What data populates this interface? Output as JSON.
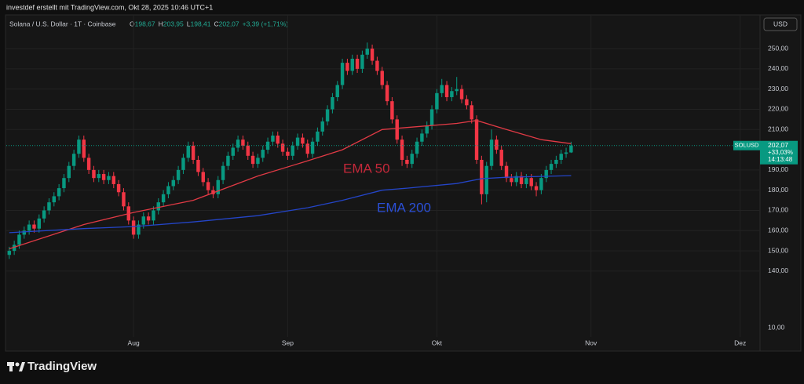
{
  "header": {
    "attribution": "investdef erstellt mit TradingView.com, Okt 28, 2025 10:46 UTC+1",
    "symbol_line": "Solana / U.S. Dollar · 1T · Coinbase",
    "ohlc": [
      {
        "key": "O",
        "value": "198,67"
      },
      {
        "key": "H",
        "value": "203,95"
      },
      {
        "key": "L",
        "value": "198,41"
      },
      {
        "key": "C",
        "value": "202,07"
      }
    ],
    "change": "+3,39 (+1,71%)",
    "currency": "USD"
  },
  "footer": {
    "brand": "TradingView"
  },
  "chart_data": {
    "type": "candlestick",
    "up_color": "#089981",
    "down_color": "#f23645",
    "grid": true,
    "x": [
      0,
      1,
      2,
      3,
      4,
      5,
      6,
      7,
      8,
      9,
      10,
      11,
      12,
      13,
      14,
      15,
      16,
      17,
      18,
      19,
      20,
      21,
      22,
      23,
      24,
      25,
      26,
      27,
      28,
      29,
      30,
      31,
      32,
      33,
      34,
      35,
      36,
      37,
      38,
      39,
      40,
      41,
      42,
      43,
      44,
      45,
      46,
      47,
      48,
      49,
      50,
      51,
      52,
      53,
      54,
      55,
      56,
      57,
      58,
      59,
      60,
      61,
      62,
      63,
      64,
      65,
      66,
      67,
      68,
      69,
      70,
      71,
      72,
      73,
      74,
      75,
      76,
      77,
      78,
      79,
      80,
      81,
      82,
      83,
      84,
      85,
      86,
      87,
      88,
      89,
      90,
      91,
      92,
      93,
      94,
      95,
      96,
      97,
      98,
      99,
      100,
      101,
      102,
      103,
      104,
      105,
      106,
      107,
      108,
      109,
      110,
      111,
      112,
      113
    ],
    "open": [
      148,
      150,
      153,
      158,
      160,
      163,
      161,
      166,
      170,
      174,
      177,
      181,
      186,
      192,
      198,
      205,
      196,
      190,
      186,
      188,
      185,
      187,
      183,
      179,
      172,
      165,
      158,
      163,
      167,
      165,
      170,
      174,
      178,
      182,
      185,
      190,
      196,
      202,
      195,
      189,
      184,
      180,
      178,
      185,
      192,
      197,
      201,
      205,
      202,
      197,
      193,
      196,
      200,
      204,
      207,
      203,
      199,
      197,
      202,
      206,
      203,
      198,
      204,
      209,
      214,
      220,
      226,
      232,
      243,
      239,
      245,
      240,
      247,
      250,
      244,
      239,
      232,
      224,
      215,
      205,
      195,
      193,
      198,
      204,
      208,
      212,
      220,
      228,
      232,
      226,
      229,
      230,
      225,
      222,
      215,
      195,
      178,
      192,
      205,
      200,
      192,
      186,
      184,
      187,
      183,
      186,
      182,
      180,
      186,
      190,
      193,
      195,
      198,
      198.67
    ],
    "high": [
      152,
      155,
      160,
      162,
      165,
      165,
      168,
      172,
      176,
      179,
      183,
      188,
      194,
      200,
      207,
      207,
      198,
      192,
      190,
      190,
      189,
      189,
      185,
      181,
      174,
      167,
      165,
      169,
      169,
      172,
      176,
      180,
      184,
      187,
      192,
      198,
      204,
      204,
      197,
      191,
      186,
      182,
      187,
      194,
      199,
      203,
      207,
      207,
      204,
      199,
      198,
      202,
      206,
      209,
      209,
      205,
      201,
      204,
      208,
      208,
      205,
      206,
      211,
      216,
      222,
      228,
      234,
      245,
      245,
      247,
      247,
      249,
      253,
      252,
      246,
      241,
      234,
      226,
      217,
      207,
      197,
      200,
      206,
      210,
      214,
      222,
      230,
      235,
      234,
      231,
      236,
      232,
      227,
      224,
      217,
      197,
      194,
      210,
      207,
      202,
      194,
      188,
      189,
      189,
      188,
      188,
      184,
      188,
      192,
      195,
      197,
      200,
      201,
      203.95
    ],
    "low": [
      146,
      148,
      151,
      156,
      158,
      159,
      159,
      164,
      168,
      172,
      175,
      179,
      184,
      190,
      196,
      194,
      188,
      184,
      184,
      183,
      183,
      181,
      177,
      170,
      163,
      156,
      156,
      161,
      163,
      163,
      168,
      172,
      176,
      180,
      183,
      188,
      194,
      193,
      187,
      182,
      178,
      176,
      176,
      183,
      190,
      195,
      199,
      200,
      195,
      191,
      191,
      194,
      198,
      202,
      201,
      197,
      195,
      195,
      200,
      201,
      196,
      196,
      202,
      207,
      212,
      218,
      224,
      230,
      237,
      237,
      238,
      238,
      245,
      242,
      237,
      230,
      222,
      213,
      203,
      192,
      191,
      191,
      196,
      202,
      206,
      210,
      218,
      226,
      224,
      224,
      227,
      223,
      220,
      213,
      193,
      173,
      174,
      190,
      198,
      190,
      184,
      182,
      182,
      181,
      181,
      180,
      177,
      178,
      184,
      188,
      191,
      193,
      196,
      198.41
    ],
    "close": [
      150,
      153,
      158,
      160,
      163,
      161,
      166,
      170,
      174,
      177,
      181,
      186,
      192,
      198,
      205,
      196,
      190,
      186,
      188,
      185,
      187,
      183,
      179,
      172,
      165,
      158,
      163,
      167,
      165,
      170,
      174,
      178,
      182,
      185,
      190,
      196,
      202,
      195,
      189,
      184,
      180,
      178,
      185,
      192,
      197,
      201,
      205,
      202,
      197,
      193,
      196,
      200,
      204,
      207,
      203,
      199,
      197,
      202,
      206,
      203,
      198,
      204,
      209,
      214,
      220,
      226,
      232,
      243,
      239,
      245,
      240,
      247,
      250,
      244,
      239,
      232,
      224,
      215,
      205,
      195,
      193,
      198,
      204,
      208,
      212,
      220,
      228,
      232,
      226,
      229,
      230,
      225,
      222,
      215,
      195,
      178,
      192,
      205,
      200,
      192,
      186,
      184,
      187,
      183,
      186,
      182,
      180,
      186,
      190,
      193,
      195,
      198,
      198.67,
      202.07
    ],
    "overlays": [
      {
        "name": "EMA 50",
        "color": "#e03a45",
        "label_color": "#c4283a",
        "x": [
          0,
          15,
          25,
          37,
          50,
          60,
          67,
          75,
          80,
          90,
          94,
          100,
          107,
          113
        ],
        "values": [
          151,
          163,
          169,
          175,
          187,
          194.5,
          200,
          210,
          211,
          213,
          214.5,
          210,
          205,
          203
        ]
      },
      {
        "name": "EMA 200",
        "color": "#2445c8",
        "label_color": "#2b4fd6",
        "x": [
          0,
          15,
          25,
          37,
          50,
          60,
          67,
          75,
          80,
          90,
          95,
          100,
          107,
          113
        ],
        "values": [
          159,
          161,
          162,
          164.3,
          167.4,
          171.3,
          175,
          180,
          181,
          183.3,
          185.7,
          186.4,
          186.8,
          187.2
        ]
      }
    ],
    "xlim": [
      -0.6,
      151
    ],
    "xticks": [
      {
        "value": 25,
        "label": "Aug"
      },
      {
        "value": 56,
        "label": "Sep"
      },
      {
        "value": 86,
        "label": "Okt"
      },
      {
        "value": 117,
        "label": "Nov"
      },
      {
        "value": 147,
        "label": "Dez"
      }
    ],
    "ylim": [
      107.4,
      266.3
    ],
    "yticks": [
      {
        "value": 140,
        "label": "140,00"
      },
      {
        "value": 150,
        "label": "150,00"
      },
      {
        "value": 160,
        "label": "160,00"
      },
      {
        "value": 170,
        "label": "170,00"
      },
      {
        "value": 180,
        "label": "180,00"
      },
      {
        "value": 190,
        "label": "190,00"
      },
      {
        "value": 210,
        "label": "210,00"
      },
      {
        "value": 220,
        "label": "220,00"
      },
      {
        "value": 230,
        "label": "230,00"
      },
      {
        "value": 240,
        "label": "240,00"
      },
      {
        "value": 250,
        "label": "250,00"
      }
    ],
    "scale_low_label": "10,00",
    "last_price": {
      "symbol": "SOLUSD",
      "value": 202.07,
      "label": "202,07",
      "change": "+33,03%",
      "countdown": "14:13:48"
    }
  }
}
